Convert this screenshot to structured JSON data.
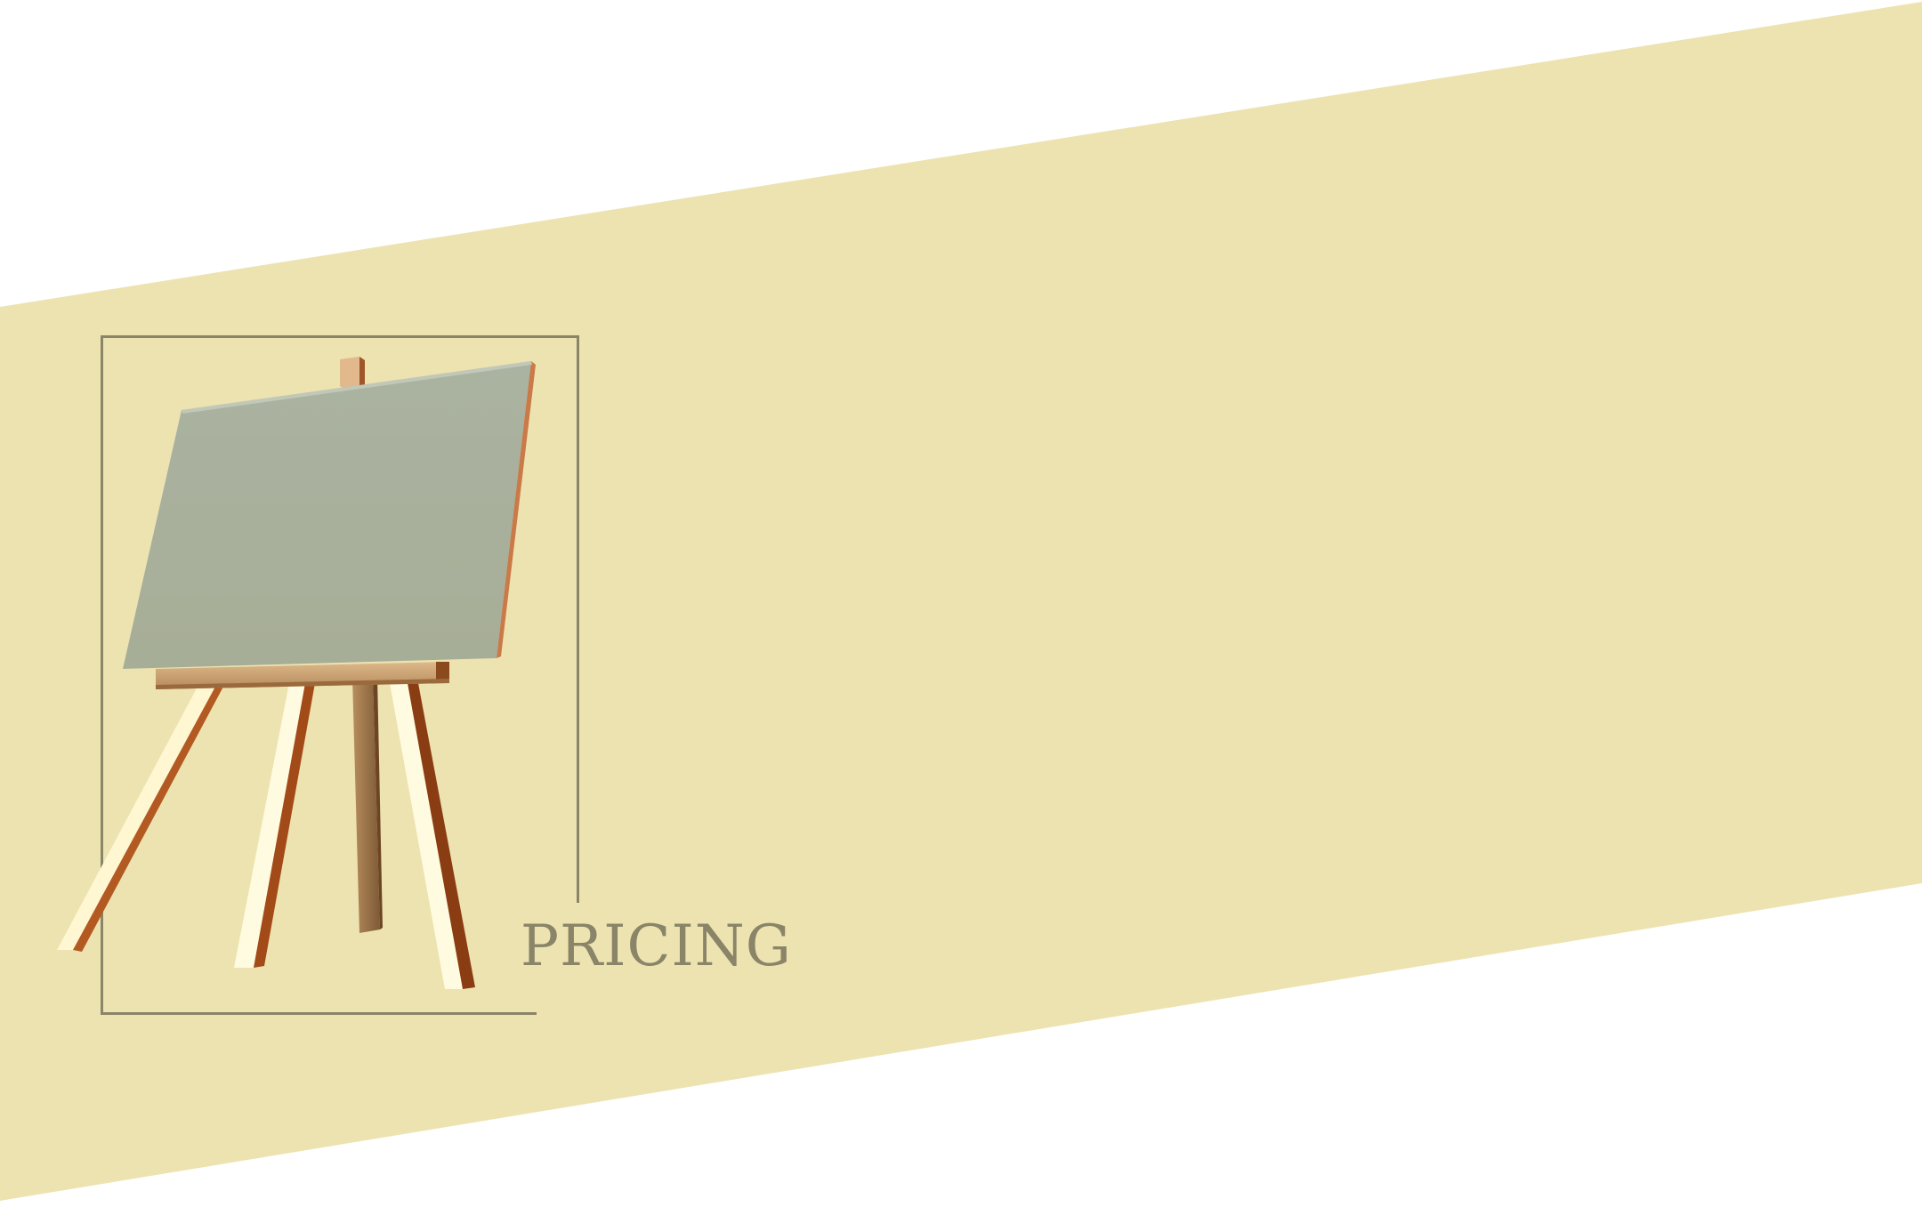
{
  "page": {
    "heading": "PRICING"
  },
  "colors": {
    "band": "#ede3b0",
    "frame": "#8a8468",
    "heading": "#8a8468",
    "canvas": "#a9b19f",
    "wood_light": "#fff6d2",
    "wood_dark": "#a24b18"
  },
  "icons": {
    "easel": "easel-with-blank-canvas"
  }
}
